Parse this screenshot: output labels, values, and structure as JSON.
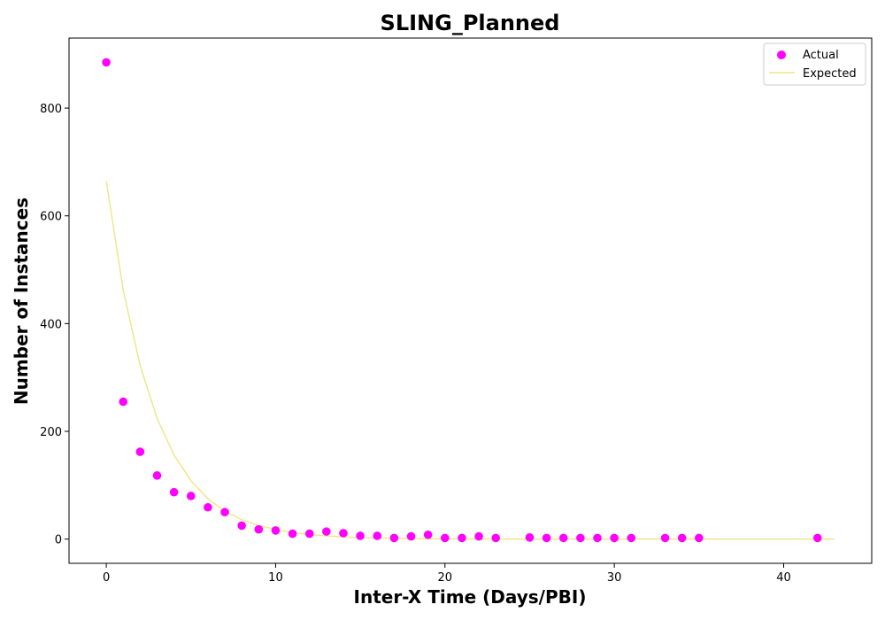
{
  "chart_data": {
    "type": "scatter",
    "title": "SLING_Planned",
    "xlabel": "Inter-X Time (Days/PBI)",
    "ylabel": "Number of Instances",
    "xlim": [
      -2.2,
      45.2
    ],
    "ylim": [
      -45,
      930
    ],
    "xticks": [
      0,
      10,
      20,
      30,
      40
    ],
    "yticks": [
      0,
      200,
      400,
      600,
      800
    ],
    "grid": false,
    "legend_position": "top-right",
    "series": [
      {
        "name": "Actual",
        "kind": "scatter",
        "color": "#ff00ff",
        "points": [
          [
            0,
            885
          ],
          [
            1,
            255
          ],
          [
            2,
            162
          ],
          [
            3,
            118
          ],
          [
            4,
            87
          ],
          [
            5,
            80
          ],
          [
            6,
            59
          ],
          [
            7,
            50
          ],
          [
            8,
            25
          ],
          [
            9,
            18
          ],
          [
            10,
            16
          ],
          [
            11,
            10
          ],
          [
            12,
            10
          ],
          [
            13,
            14
          ],
          [
            14,
            11
          ],
          [
            15,
            6
          ],
          [
            16,
            6
          ],
          [
            17,
            2
          ],
          [
            18,
            5
          ],
          [
            19,
            8
          ],
          [
            20,
            2
          ],
          [
            21,
            2
          ],
          [
            22,
            5
          ],
          [
            23,
            2
          ],
          [
            25,
            3
          ],
          [
            26,
            2
          ],
          [
            27,
            2
          ],
          [
            28,
            2
          ],
          [
            29,
            2
          ],
          [
            30,
            2
          ],
          [
            31,
            2
          ],
          [
            33,
            2
          ],
          [
            34,
            2
          ],
          [
            35,
            2
          ],
          [
            42,
            2
          ]
        ]
      },
      {
        "name": "Expected",
        "kind": "line",
        "color": "#f0e68c",
        "points": [
          [
            0,
            665
          ],
          [
            1,
            462
          ],
          [
            2,
            322
          ],
          [
            3,
            224
          ],
          [
            4,
            156
          ],
          [
            5,
            108
          ],
          [
            6,
            75
          ],
          [
            7,
            52
          ],
          [
            8,
            36
          ],
          [
            9,
            25
          ],
          [
            10,
            18
          ],
          [
            11,
            12
          ],
          [
            12,
            8.5
          ],
          [
            13,
            6
          ],
          [
            14,
            4
          ],
          [
            15,
            2.8
          ],
          [
            16,
            2
          ],
          [
            17,
            1.4
          ],
          [
            18,
            1
          ],
          [
            19,
            0.7
          ],
          [
            20,
            0.5
          ],
          [
            21,
            0.3
          ],
          [
            22,
            0.2
          ],
          [
            23,
            0.1
          ],
          [
            24,
            0
          ],
          [
            25,
            0
          ],
          [
            26,
            0
          ],
          [
            27,
            0
          ],
          [
            28,
            0
          ],
          [
            29,
            0
          ],
          [
            30,
            0
          ],
          [
            31,
            0
          ],
          [
            32,
            0
          ],
          [
            33,
            0
          ],
          [
            34,
            0
          ],
          [
            35,
            0
          ],
          [
            36,
            0
          ],
          [
            37,
            0
          ],
          [
            38,
            0
          ],
          [
            39,
            0
          ],
          [
            40,
            0
          ],
          [
            41,
            0
          ],
          [
            42,
            0
          ],
          [
            43,
            0
          ]
        ]
      }
    ]
  }
}
